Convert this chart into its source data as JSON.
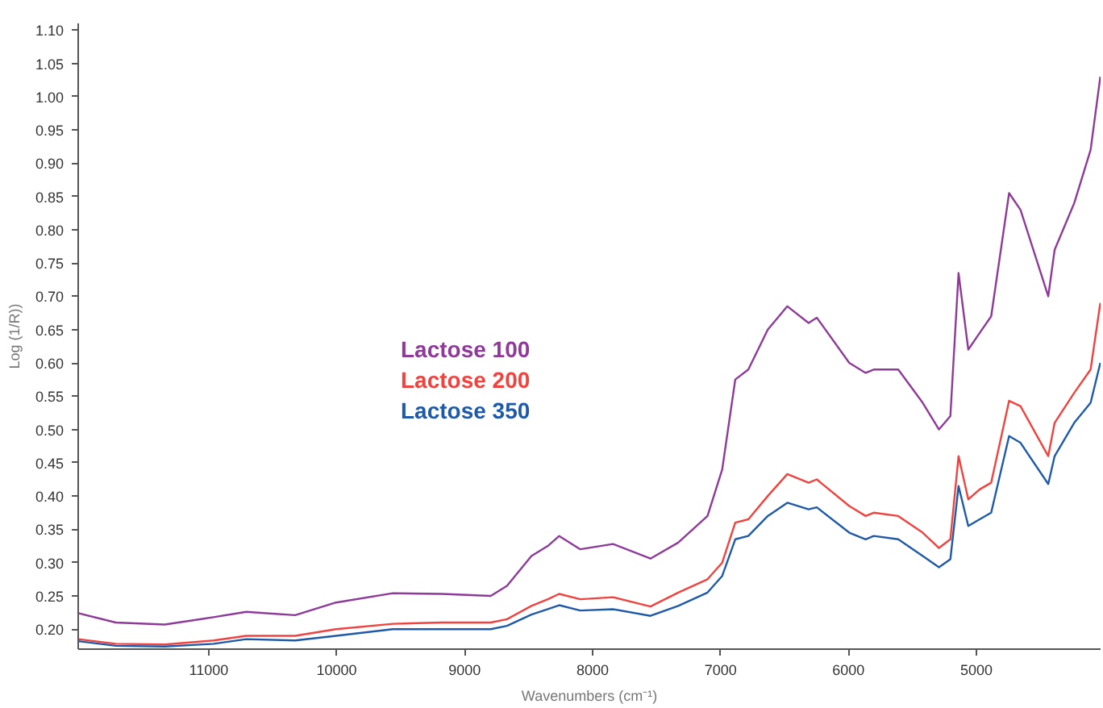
{
  "chart_data": {
    "type": "line",
    "xlabel": "Wavenumbers (cm⁻¹)",
    "ylabel": "Log (1/R))",
    "x": [
      12019,
      11726,
      11344,
      10962,
      10707,
      10325,
      10006,
      9561,
      9178,
      8796,
      8669,
      8478,
      8350,
      8261,
      8096,
      7841,
      7548,
      7331,
      7102,
      6987,
      6885,
      6783,
      6631,
      6478,
      6312,
      6248,
      5994,
      5866,
      5803,
      5611,
      5420,
      5293,
      5204,
      5140,
      5064,
      4975,
      4885,
      4745,
      4656,
      4439,
      4389,
      4236,
      4108,
      4032
    ],
    "series": [
      {
        "name": "Lactose 100",
        "color": "#8e3a99",
        "values": [
          0.224,
          0.21,
          0.207,
          0.218,
          0.226,
          0.221,
          0.24,
          0.254,
          0.253,
          0.25,
          0.265,
          0.31,
          0.325,
          0.34,
          0.32,
          0.328,
          0.306,
          0.33,
          0.37,
          0.44,
          0.575,
          0.59,
          0.65,
          0.685,
          0.66,
          0.668,
          0.6,
          0.585,
          0.59,
          0.59,
          0.54,
          0.5,
          0.52,
          0.735,
          0.62,
          0.645,
          0.67,
          0.855,
          0.83,
          0.7,
          0.77,
          0.84,
          0.92,
          1.03
        ]
      },
      {
        "name": "Lactose 200",
        "color": "#f0433f",
        "values": [
          0.185,
          0.178,
          0.177,
          0.183,
          0.19,
          0.19,
          0.2,
          0.208,
          0.21,
          0.21,
          0.215,
          0.235,
          0.245,
          0.253,
          0.245,
          0.248,
          0.234,
          0.255,
          0.275,
          0.3,
          0.36,
          0.365,
          0.4,
          0.433,
          0.42,
          0.425,
          0.385,
          0.37,
          0.375,
          0.37,
          0.345,
          0.322,
          0.335,
          0.46,
          0.395,
          0.41,
          0.42,
          0.543,
          0.535,
          0.46,
          0.51,
          0.555,
          0.59,
          0.69
        ]
      },
      {
        "name": "Lactose 350",
        "color": "#1f5aa8",
        "values": [
          0.182,
          0.175,
          0.174,
          0.178,
          0.185,
          0.183,
          0.19,
          0.2,
          0.2,
          0.2,
          0.205,
          0.222,
          0.23,
          0.236,
          0.228,
          0.23,
          0.22,
          0.235,
          0.255,
          0.28,
          0.335,
          0.34,
          0.37,
          0.39,
          0.38,
          0.383,
          0.345,
          0.335,
          0.34,
          0.335,
          0.31,
          0.293,
          0.305,
          0.415,
          0.355,
          0.365,
          0.375,
          0.49,
          0.48,
          0.418,
          0.46,
          0.51,
          0.54,
          0.6
        ]
      }
    ],
    "xlim": [
      12020,
      4030
    ],
    "ylim": [
      0.17,
      1.11
    ],
    "xticks": [
      11000,
      10000,
      9000,
      8000,
      7000,
      6000,
      5000
    ],
    "yticks": [
      {
        "value": 0.2,
        "label": "0.20"
      },
      {
        "value": 0.25,
        "label": "0.25"
      },
      {
        "value": 0.3,
        "label": "0.30"
      },
      {
        "value": 0.35,
        "label": "0.35"
      },
      {
        "value": 0.4,
        "label": "0.40"
      },
      {
        "value": 0.45,
        "label": "0.45"
      },
      {
        "value": 0.5,
        "label": "0.50"
      },
      {
        "value": 0.55,
        "label": "0.55"
      },
      {
        "value": 0.6,
        "label": "0.60"
      },
      {
        "value": 0.65,
        "label": "0.65"
      },
      {
        "value": 0.7,
        "label": "0.70"
      },
      {
        "value": 0.75,
        "label": "0.75"
      },
      {
        "value": 0.8,
        "label": "0.80"
      },
      {
        "value": 0.85,
        "label": "0.85"
      },
      {
        "value": 0.9,
        "label": "0.90"
      },
      {
        "value": 0.95,
        "label": "0.95"
      },
      {
        "value": 1.0,
        "label": "1.00"
      },
      {
        "value": 1.05,
        "label": "1.05"
      },
      {
        "value": 1.1,
        "label": "1.10"
      }
    ],
    "grid": false,
    "line_style": "solid"
  }
}
